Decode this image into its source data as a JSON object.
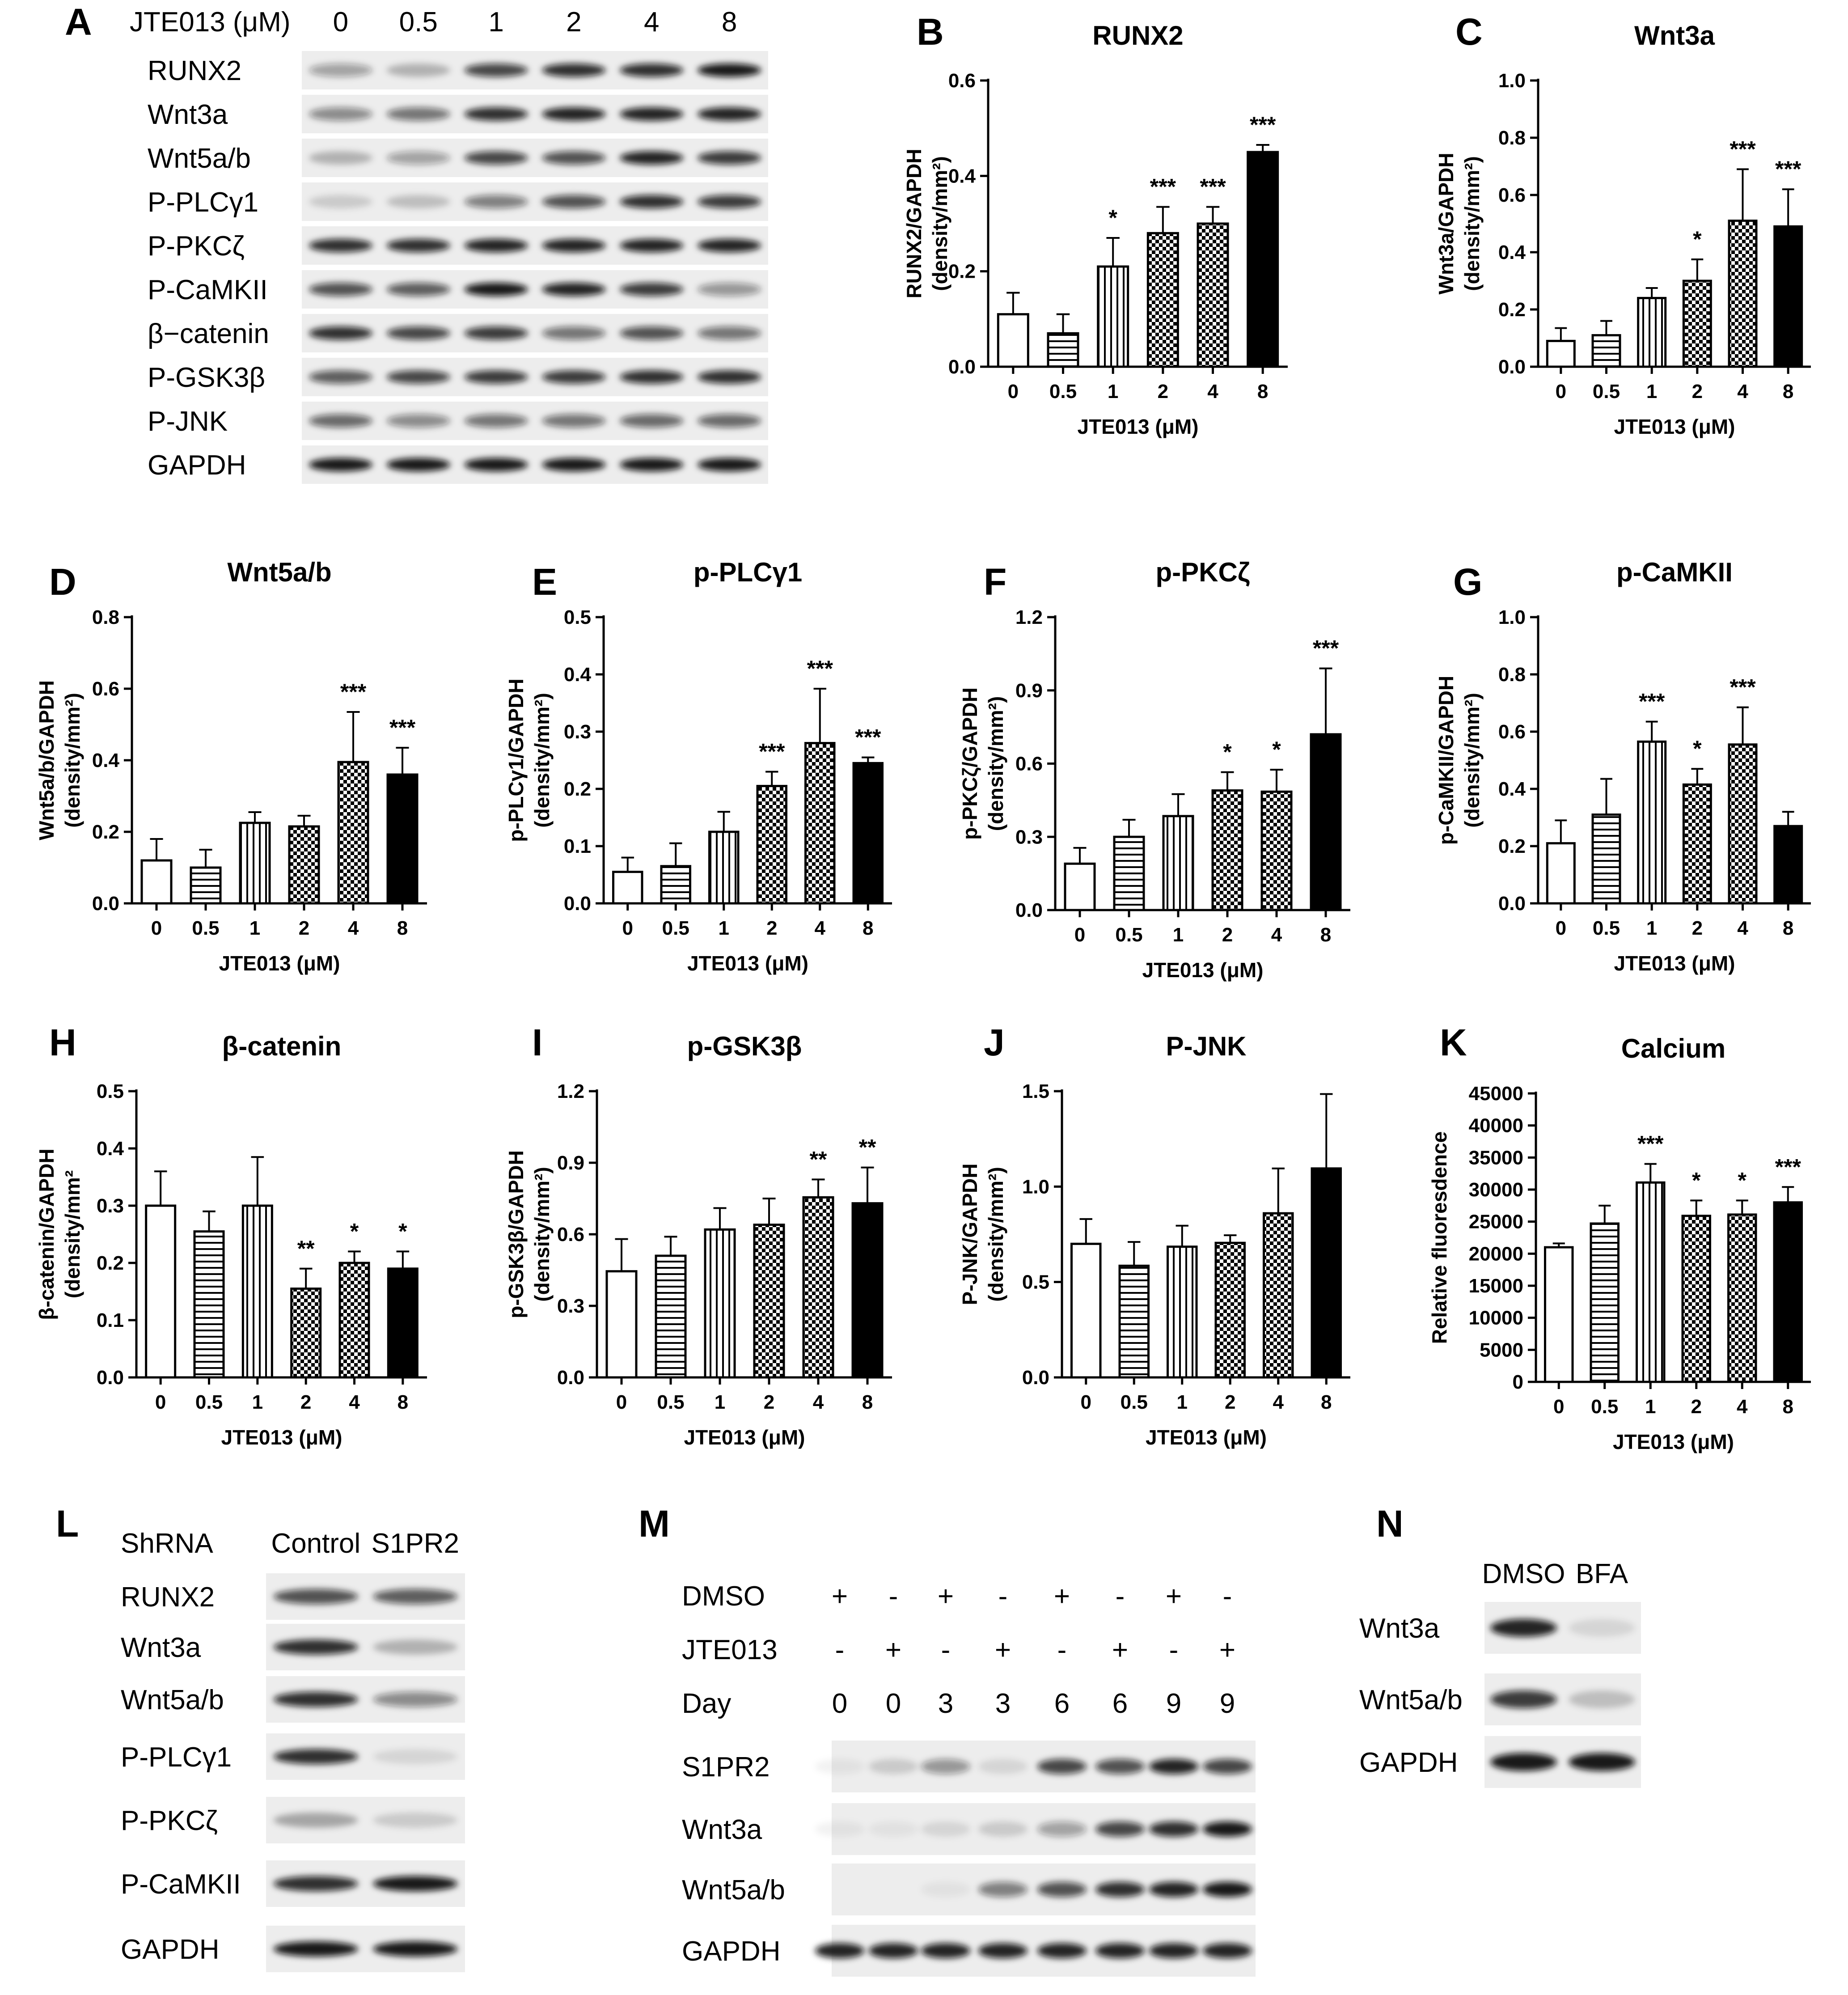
{
  "blotA": {
    "letter": "A",
    "header": "JTE013 (μM)",
    "lanes": [
      "0",
      "0.5",
      "1",
      "2",
      "4",
      "8"
    ],
    "rows": [
      {
        "label": "RUNX2",
        "intensity": [
          0.35,
          0.25,
          0.75,
          0.85,
          0.85,
          0.95
        ]
      },
      {
        "label": "Wnt3a",
        "intensity": [
          0.45,
          0.55,
          0.85,
          0.9,
          0.9,
          0.9
        ]
      },
      {
        "label": "Wnt5a/b",
        "intensity": [
          0.25,
          0.35,
          0.75,
          0.7,
          0.9,
          0.8
        ]
      },
      {
        "label": "P-PLCγ1",
        "intensity": [
          0.15,
          0.2,
          0.5,
          0.7,
          0.85,
          0.8
        ]
      },
      {
        "label": "P-PKCζ",
        "intensity": [
          0.85,
          0.85,
          0.9,
          0.9,
          0.9,
          0.9
        ]
      },
      {
        "label": "P-CaMKII",
        "intensity": [
          0.7,
          0.65,
          0.95,
          0.9,
          0.8,
          0.4
        ]
      },
      {
        "label": "β−catenin",
        "intensity": [
          0.85,
          0.75,
          0.8,
          0.55,
          0.7,
          0.55
        ]
      },
      {
        "label": "P-GSK3β",
        "intensity": [
          0.65,
          0.75,
          0.8,
          0.8,
          0.85,
          0.85
        ]
      },
      {
        "label": "P-JNK",
        "intensity": [
          0.6,
          0.45,
          0.55,
          0.55,
          0.6,
          0.6
        ]
      },
      {
        "label": "GAPDH",
        "intensity": [
          0.95,
          0.95,
          0.95,
          0.95,
          0.95,
          0.95
        ]
      }
    ]
  },
  "chart_data": [
    {
      "letter": "B",
      "type": "bar",
      "title": "RUNX2",
      "ylabel": "RUNX2/GAPDH\n(density/mm²)",
      "xlabel": "JTE013 (μM)",
      "categories": [
        "0",
        "0.5",
        "1",
        "2",
        "4",
        "8"
      ],
      "values": [
        0.11,
        0.07,
        0.21,
        0.28,
        0.3,
        0.45
      ],
      "errors": [
        0.045,
        0.04,
        0.06,
        0.055,
        0.035,
        0.015
      ],
      "sig": [
        "",
        "",
        "*",
        "***",
        "***",
        "***"
      ],
      "ylim": [
        0,
        0.6
      ],
      "yticks": [
        "0.0",
        "0.2",
        "0.4",
        "0.6"
      ]
    },
    {
      "letter": "C",
      "type": "bar",
      "title": "Wnt3a",
      "ylabel": "Wnt3a/GAPDH\n(density/mm²)",
      "xlabel": "JTE013 (μM)",
      "categories": [
        "0",
        "0.5",
        "1",
        "2",
        "4",
        "8"
      ],
      "values": [
        0.09,
        0.11,
        0.24,
        0.3,
        0.51,
        0.49
      ],
      "errors": [
        0.045,
        0.05,
        0.035,
        0.075,
        0.18,
        0.13
      ],
      "sig": [
        "",
        "",
        "",
        "*",
        "***",
        "***"
      ],
      "ylim": [
        0,
        1.0
      ],
      "yticks": [
        "0.0",
        "0.2",
        "0.4",
        "0.6",
        "0.8",
        "1.0"
      ]
    },
    {
      "letter": "D",
      "type": "bar",
      "title": "Wnt5a/b",
      "ylabel": "Wnt5a/b/GAPDH\n(density/mm²)",
      "xlabel": "JTE013 (μM)",
      "categories": [
        "0",
        "0.5",
        "1",
        "2",
        "4",
        "8"
      ],
      "values": [
        0.12,
        0.1,
        0.225,
        0.215,
        0.395,
        0.36
      ],
      "errors": [
        0.06,
        0.05,
        0.03,
        0.03,
        0.14,
        0.075
      ],
      "sig": [
        "",
        "",
        "",
        "",
        "***",
        "***"
      ],
      "ylim": [
        0,
        0.8
      ],
      "yticks": [
        "0.0",
        "0.2",
        "0.4",
        "0.6",
        "0.8"
      ]
    },
    {
      "letter": "E",
      "type": "bar",
      "title": "p-PLCγ1",
      "ylabel": "p-PLCγ1/GAPDH\n(density/mm²)",
      "xlabel": "JTE013 (μM)",
      "categories": [
        "0",
        "0.5",
        "1",
        "2",
        "4",
        "8"
      ],
      "values": [
        0.055,
        0.065,
        0.125,
        0.205,
        0.28,
        0.245
      ],
      "errors": [
        0.025,
        0.04,
        0.035,
        0.025,
        0.095,
        0.01
      ],
      "sig": [
        "",
        "",
        "",
        "***",
        "***",
        "***"
      ],
      "ylim": [
        0,
        0.5
      ],
      "yticks": [
        "0.0",
        "0.1",
        "0.2",
        "0.3",
        "0.4",
        "0.5"
      ]
    },
    {
      "letter": "F",
      "type": "bar",
      "title": "p-PKCζ",
      "ylabel": "p-PKCζ/GAPDH\n(density/mm²)",
      "xlabel": "JTE013 (μM)",
      "categories": [
        "0",
        "0.5",
        "1",
        "2",
        "4",
        "8"
      ],
      "values": [
        0.19,
        0.3,
        0.385,
        0.49,
        0.485,
        0.72
      ],
      "errors": [
        0.065,
        0.07,
        0.09,
        0.075,
        0.09,
        0.27
      ],
      "sig": [
        "",
        "",
        "",
        "*",
        "*",
        "***"
      ],
      "ylim": [
        0,
        1.2
      ],
      "yticks": [
        "0.0",
        "0.3",
        "0.6",
        "0.9",
        "1.2"
      ]
    },
    {
      "letter": "G",
      "type": "bar",
      "title": "p-CaMKII",
      "ylabel": "p-CaMKII/GAPDH\n(density/mm²)",
      "xlabel": "JTE013 (μM)",
      "categories": [
        "0",
        "0.5",
        "1",
        "2",
        "4",
        "8"
      ],
      "values": [
        0.21,
        0.31,
        0.565,
        0.415,
        0.555,
        0.27
      ],
      "errors": [
        0.08,
        0.125,
        0.07,
        0.055,
        0.13,
        0.05
      ],
      "sig": [
        "",
        "",
        "***",
        "*",
        "***",
        ""
      ],
      "ylim": [
        0,
        1.0
      ],
      "yticks": [
        "0.0",
        "0.2",
        "0.4",
        "0.6",
        "0.8",
        "1.0"
      ]
    },
    {
      "letter": "H",
      "type": "bar",
      "title": "β-catenin",
      "ylabel": "β-catenin/GAPDH\n(density/mm²",
      "xlabel": "JTE013 (μM)",
      "categories": [
        "0",
        "0.5",
        "1",
        "2",
        "4",
        "8"
      ],
      "values": [
        0.3,
        0.255,
        0.3,
        0.155,
        0.2,
        0.19
      ],
      "errors": [
        0.06,
        0.035,
        0.085,
        0.035,
        0.02,
        0.03
      ],
      "sig": [
        "",
        "",
        "",
        "**",
        "*",
        "*"
      ],
      "ylim": [
        0,
        0.5
      ],
      "yticks": [
        "0.0",
        "0.1",
        "0.2",
        "0.3",
        "0.4",
        "0.5"
      ]
    },
    {
      "letter": "I",
      "type": "bar",
      "title": "p-GSK3β",
      "ylabel": "p-GSK3β/GAPDH\n(density/mm²)",
      "xlabel": "JTE013 (μM)",
      "categories": [
        "0",
        "0.5",
        "1",
        "2",
        "4",
        "8"
      ],
      "values": [
        0.445,
        0.51,
        0.62,
        0.64,
        0.755,
        0.73
      ],
      "errors": [
        0.135,
        0.08,
        0.09,
        0.11,
        0.075,
        0.15
      ],
      "sig": [
        "",
        "",
        "",
        "",
        "**",
        "**"
      ],
      "ylim": [
        0,
        1.2
      ],
      "yticks": [
        "0.0",
        "0.3",
        "0.6",
        "0.9",
        "1.2"
      ]
    },
    {
      "letter": "J",
      "type": "bar",
      "title": "P-JNK",
      "ylabel": "P-JNK/GAPDH\n(density/mm²)",
      "xlabel": "JTE013 (μM)",
      "categories": [
        "0",
        "0.5",
        "1",
        "2",
        "4",
        "8"
      ],
      "values": [
        0.7,
        0.585,
        0.685,
        0.705,
        0.86,
        1.095
      ],
      "errors": [
        0.13,
        0.125,
        0.11,
        0.04,
        0.235,
        0.39
      ],
      "sig": [
        "",
        "",
        "",
        "",
        "",
        ""
      ],
      "ylim": [
        0,
        1.5
      ],
      "yticks": [
        "0.0",
        "0.5",
        "1.0",
        "1.5"
      ]
    },
    {
      "letter": "K",
      "type": "bar",
      "title": "Calcium",
      "ylabel": "Relative fluoresdence",
      "xlabel": "JTE013 (μM)",
      "categories": [
        "0",
        "0.5",
        "1",
        "2",
        "4",
        "8"
      ],
      "values": [
        21000,
        24700,
        31100,
        25900,
        26100,
        28000
      ],
      "errors": [
        600,
        2800,
        2900,
        2400,
        2200,
        2400
      ],
      "sig": [
        "",
        "",
        "***",
        "*",
        "*",
        "***"
      ],
      "ylim": [
        0,
        45000
      ],
      "yticks": [
        "0",
        "5000",
        "10000",
        "15000",
        "20000",
        "25000",
        "30000",
        "35000",
        "40000",
        "45000"
      ]
    }
  ],
  "blotL": {
    "letter": "L",
    "header_label": "ShRNA",
    "lanes": [
      "Control",
      "S1PR2"
    ],
    "rows": [
      {
        "label": "RUNX2",
        "intensity": [
          0.7,
          0.65
        ]
      },
      {
        "label": "Wnt3a",
        "intensity": [
          0.85,
          0.25
        ]
      },
      {
        "label": "Wnt5a/b",
        "intensity": [
          0.85,
          0.45
        ]
      },
      {
        "label": "P-PLCγ1",
        "intensity": [
          0.85,
          0.1
        ]
      },
      {
        "label": "P-PKCζ",
        "intensity": [
          0.3,
          0.15
        ]
      },
      {
        "label": "P-CaMKII",
        "intensity": [
          0.85,
          0.95
        ]
      },
      {
        "label": "GAPDH",
        "intensity": [
          0.95,
          0.95
        ]
      }
    ]
  },
  "blotM": {
    "letter": "M",
    "conditions": [
      {
        "label": "DMSO",
        "values": [
          "+",
          "-",
          "+",
          "-",
          "+",
          "-",
          "+",
          "-"
        ]
      },
      {
        "label": "JTE013",
        "values": [
          "-",
          "+",
          "-",
          "+",
          "-",
          "+",
          "-",
          "+"
        ]
      },
      {
        "label": "Day",
        "values": [
          "0",
          "0",
          "3",
          "3",
          "6",
          "6",
          "9",
          "9"
        ]
      }
    ],
    "rows": [
      {
        "label": "S1PR2",
        "intensity": [
          0.05,
          0.15,
          0.4,
          0.1,
          0.75,
          0.7,
          0.9,
          0.75
        ]
      },
      {
        "label": "Wnt3a",
        "intensity": [
          0.05,
          0.05,
          0.1,
          0.15,
          0.35,
          0.75,
          0.85,
          0.95
        ]
      },
      {
        "label": "Wnt5a/b",
        "intensity": [
          0.02,
          0.02,
          0.05,
          0.5,
          0.7,
          0.85,
          0.9,
          0.95
        ]
      },
      {
        "label": "GAPDH",
        "intensity": [
          0.9,
          0.9,
          0.9,
          0.9,
          0.9,
          0.9,
          0.9,
          0.9
        ]
      }
    ]
  },
  "blotN": {
    "letter": "N",
    "lanes": [
      "DMSO",
      "BFA"
    ],
    "rows": [
      {
        "label": "Wnt3a",
        "intensity": [
          0.9,
          0.1
        ]
      },
      {
        "label": "Wnt5a/b",
        "intensity": [
          0.8,
          0.2
        ]
      },
      {
        "label": "GAPDH",
        "intensity": [
          0.95,
          0.95
        ]
      }
    ]
  },
  "colors": {
    "ink": "#000000",
    "band": "#111111",
    "membrane": "#ededed",
    "background": "#ffffff"
  }
}
